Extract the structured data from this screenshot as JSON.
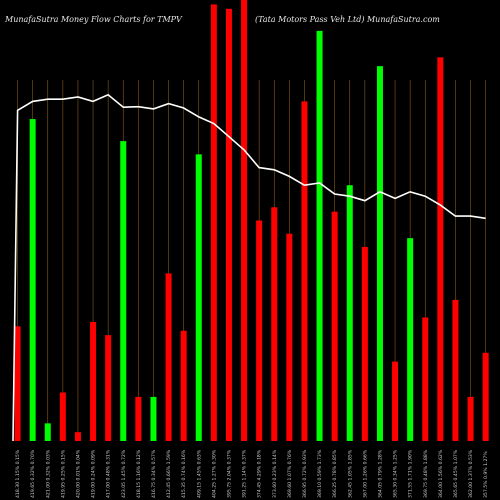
{
  "chart_data": {
    "type": "bar",
    "title_left": "MunafaSutra  Money Flow  Charts for TMPV",
    "title_right": "(Tata Motors Pass Veh Ltd) MunafaSutra.com",
    "ylim": [
      0,
      100
    ],
    "grid": "vertical",
    "categories": [
      "418.30 1.15% 0.15%",
      "419.65 0.32% 0.70%",
      "421.00 0.32% 0.03%",
      "419.95 0.25% 0.15%",
      "420.00 0.01% 0.04%",
      "419.00 0.24% 0.09%",
      "417.00 0.48% 0.31%",
      "423.05 1.45% 0.72%",
      "418.15 1.16% 0.12%",
      "416.75 0.34% 0.57%",
      "412.45 0.66% 1.59%",
      "415.35 0.74% 0.16%",
      "409.15 1.45% 0.63%",
      "404.25 1.27% 0.30%",
      "395.75 2.04% 0.37%",
      "391.25 1.14% 0.37%",
      "374.45 4.29% 0.18%",
      "373.60 0.23% 0.14%",
      "369.60 1.07% 0.76%",
      "366.95 0.72% 0.93%",
      "369.10 0.59% 1.73%",
      "366.25 0.78% 0.85%",
      "362.45 1.05% 1.85%",
      "367.00 1.26% 0.66%",
      "364.05 0.79% 1.28%",
      "365.30 0.34% 1.25%",
      "371.55 1.71% 1.90%",
      "369.75 0.48% 1.88%",
      "364.00 1.56% 0.62%",
      "365.65 0.45% 1.07%",
      "362.00 1.37% 0.53%",
      "357.5% 0.9% 1.27%"
    ],
    "colors": [
      "red",
      "green",
      "green",
      "red",
      "red",
      "red",
      "red",
      "green",
      "red",
      "green",
      "red",
      "red",
      "green",
      "red",
      "red",
      "red",
      "red",
      "red",
      "red",
      "red",
      "green",
      "red",
      "green",
      "red",
      "green",
      "red",
      "green",
      "red",
      "red",
      "red",
      "red",
      "red"
    ],
    "values": [
      26,
      73,
      4,
      11,
      2,
      27,
      24,
      68,
      10,
      10,
      38,
      25,
      65,
      99,
      98,
      100,
      50,
      53,
      47,
      77,
      93,
      52,
      58,
      44,
      85,
      18,
      46,
      28,
      87,
      32,
      10,
      20
    ],
    "line_values": [
      75,
      77,
      77.5,
      77.5,
      78,
      77,
      78.5,
      75.7,
      75.8,
      75.3,
      76.5,
      75.5,
      73.5,
      72,
      69,
      66,
      62,
      61.5,
      60,
      58,
      58.5,
      56,
      55.5,
      54.5,
      56.5,
      55,
      56.5,
      55.5,
      53.5,
      51,
      51,
      50.5
    ],
    "series_colors": {
      "red": "#ff0000",
      "green": "#00ff00",
      "line": "#ffffff",
      "grid": "#8a5a1a"
    }
  }
}
